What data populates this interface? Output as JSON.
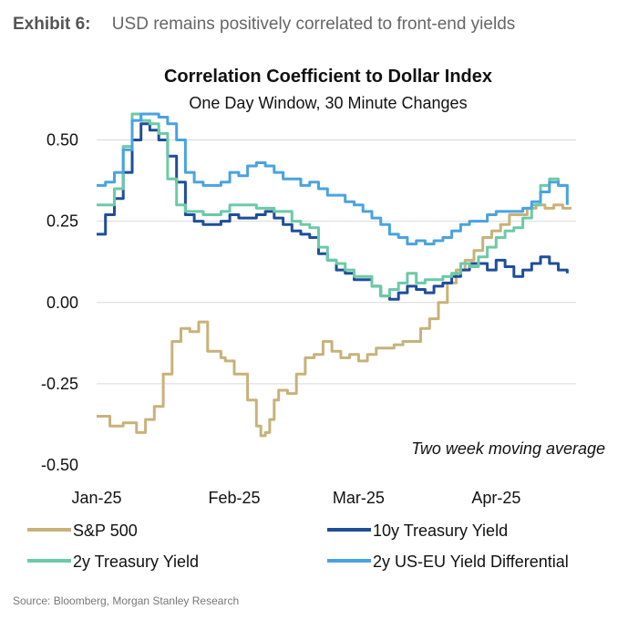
{
  "exhibit": {
    "label": "Exhibit 6:",
    "title": "USD remains positively correlated to front-end yields"
  },
  "source": "Source: Bloomberg, Morgan Stanley Research",
  "chart_data": {
    "type": "line",
    "title": "Correlation Coefficient to Dollar Index",
    "subtitle": "One Day Window, 30 Minute Changes",
    "annotation": "Two week moving average",
    "xlabel": "",
    "ylabel": "",
    "x_ticks": [
      "Jan-25",
      "Feb-25",
      "Mar-25",
      "Apr-25"
    ],
    "x_tick_days": [
      0,
      31,
      59,
      90
    ],
    "xlim": [
      0,
      108
    ],
    "ylim": [
      -0.5,
      0.6
    ],
    "y_ticks": [
      0.5,
      0.25,
      0.0,
      -0.25,
      -0.5
    ],
    "y_tick_labels": [
      "0.50",
      "0.25",
      "0.00",
      "-0.25",
      "-0.50"
    ],
    "grid": true,
    "legend_position": "bottom",
    "series": [
      {
        "name": "S&P 500",
        "color": "#c8b27a",
        "x": [
          0,
          3,
          6,
          9,
          11,
          13,
          15,
          17,
          19,
          21,
          23,
          25,
          27,
          28,
          29,
          31,
          34,
          36,
          37,
          38,
          39,
          40,
          41,
          43,
          45,
          47,
          49,
          51,
          53,
          55,
          57,
          59,
          61,
          63,
          65,
          67,
          69,
          71,
          73,
          75,
          77,
          79,
          81,
          83,
          85,
          87,
          89,
          91,
          93,
          95,
          97,
          99,
          101,
          103,
          105,
          107
        ],
        "values": [
          -0.35,
          -0.38,
          -0.37,
          -0.4,
          -0.36,
          -0.32,
          -0.22,
          -0.12,
          -0.08,
          -0.09,
          -0.06,
          -0.15,
          -0.15,
          -0.17,
          -0.18,
          -0.22,
          -0.3,
          -0.38,
          -0.41,
          -0.4,
          -0.36,
          -0.3,
          -0.27,
          -0.28,
          -0.22,
          -0.17,
          -0.16,
          -0.12,
          -0.15,
          -0.17,
          -0.16,
          -0.18,
          -0.16,
          -0.14,
          -0.14,
          -0.13,
          -0.12,
          -0.12,
          -0.08,
          -0.05,
          0.0,
          0.06,
          0.1,
          0.13,
          0.16,
          0.2,
          0.22,
          0.24,
          0.27,
          0.27,
          0.29,
          0.3,
          0.29,
          0.3,
          0.29,
          0.29
        ]
      },
      {
        "name": "10y Treasury Yield",
        "color": "#1f4e99",
        "x": [
          0,
          2,
          4,
          6,
          8,
          10,
          12,
          14,
          16,
          18,
          20,
          22,
          24,
          26,
          28,
          30,
          32,
          34,
          36,
          38,
          40,
          42,
          44,
          46,
          48,
          50,
          52,
          54,
          56,
          58,
          60,
          62,
          64,
          66,
          68,
          70,
          72,
          74,
          76,
          78,
          80,
          82,
          84,
          86,
          88,
          90,
          92,
          94,
          96,
          98,
          100,
          102,
          104,
          106
        ],
        "values": [
          0.21,
          0.27,
          0.32,
          0.4,
          0.5,
          0.55,
          0.53,
          0.5,
          0.45,
          0.37,
          0.27,
          0.25,
          0.24,
          0.24,
          0.25,
          0.27,
          0.26,
          0.26,
          0.27,
          0.28,
          0.26,
          0.24,
          0.22,
          0.21,
          0.2,
          0.15,
          0.13,
          0.1,
          0.09,
          0.07,
          0.07,
          0.05,
          0.02,
          0.01,
          0.03,
          0.05,
          0.04,
          0.03,
          0.05,
          0.06,
          0.08,
          0.1,
          0.12,
          0.12,
          0.1,
          0.13,
          0.11,
          0.08,
          0.1,
          0.12,
          0.14,
          0.12,
          0.1,
          0.09
        ]
      },
      {
        "name": "2y Treasury Yield",
        "color": "#6ccaa6",
        "x": [
          0,
          2,
          4,
          6,
          8,
          10,
          12,
          14,
          16,
          18,
          20,
          22,
          24,
          26,
          28,
          30,
          32,
          34,
          36,
          38,
          40,
          42,
          44,
          46,
          48,
          50,
          52,
          54,
          56,
          58,
          60,
          62,
          64,
          66,
          68,
          70,
          72,
          74,
          76,
          78,
          80,
          82,
          84,
          86,
          88,
          90,
          92,
          94,
          96,
          98,
          100,
          102,
          104,
          106
        ],
        "values": [
          0.3,
          0.3,
          0.35,
          0.48,
          0.58,
          0.56,
          0.55,
          0.52,
          0.38,
          0.3,
          0.28,
          0.28,
          0.27,
          0.27,
          0.28,
          0.3,
          0.3,
          0.3,
          0.29,
          0.29,
          0.28,
          0.28,
          0.25,
          0.24,
          0.23,
          0.17,
          0.13,
          0.12,
          0.1,
          0.08,
          0.08,
          0.05,
          0.02,
          0.04,
          0.06,
          0.09,
          0.06,
          0.07,
          0.07,
          0.08,
          0.09,
          0.12,
          0.11,
          0.14,
          0.17,
          0.2,
          0.22,
          0.23,
          0.26,
          0.3,
          0.36,
          0.38,
          0.36,
          0.35
        ]
      },
      {
        "name": "2y US-EU Yield Differential",
        "color": "#4aa3df",
        "x": [
          0,
          2,
          4,
          6,
          8,
          10,
          12,
          14,
          16,
          18,
          20,
          22,
          24,
          26,
          28,
          30,
          32,
          34,
          36,
          38,
          40,
          42,
          44,
          46,
          48,
          50,
          52,
          54,
          56,
          58,
          60,
          62,
          64,
          66,
          68,
          70,
          72,
          74,
          76,
          78,
          80,
          82,
          84,
          86,
          88,
          90,
          92,
          94,
          96,
          98,
          100,
          102,
          104,
          106
        ],
        "values": [
          0.36,
          0.37,
          0.4,
          0.47,
          0.56,
          0.58,
          0.58,
          0.57,
          0.55,
          0.5,
          0.4,
          0.37,
          0.36,
          0.36,
          0.37,
          0.4,
          0.39,
          0.42,
          0.43,
          0.42,
          0.4,
          0.38,
          0.38,
          0.36,
          0.37,
          0.35,
          0.33,
          0.33,
          0.31,
          0.3,
          0.28,
          0.26,
          0.24,
          0.21,
          0.2,
          0.18,
          0.19,
          0.18,
          0.19,
          0.2,
          0.22,
          0.24,
          0.25,
          0.25,
          0.27,
          0.28,
          0.28,
          0.28,
          0.29,
          0.31,
          0.34,
          0.37,
          0.36,
          0.3
        ]
      }
    ]
  }
}
